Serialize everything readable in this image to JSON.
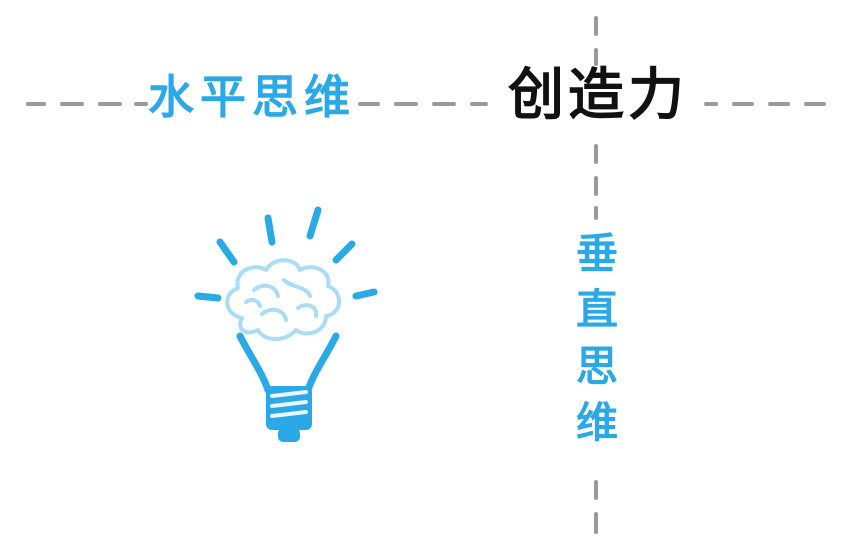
{
  "horizontal_label": "水平思维",
  "center_label": "创造力",
  "vertical_label": [
    "垂",
    "直",
    "思",
    "维"
  ],
  "colors": {
    "accent_blue": "#2ba8e6",
    "brain_blue": "#a9dcf6",
    "dash_gray": "#9a9a9a",
    "text_black": "#111111"
  },
  "icons": [
    "lightbulb-brain-icon"
  ]
}
